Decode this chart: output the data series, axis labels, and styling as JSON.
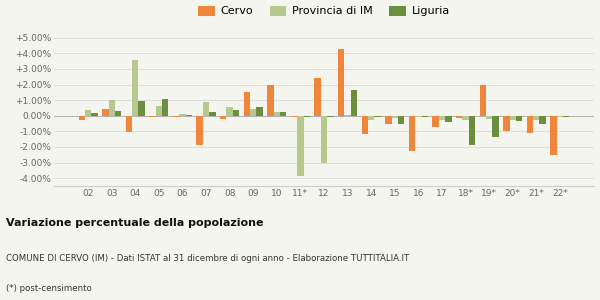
{
  "categories": [
    "02",
    "03",
    "04",
    "05",
    "06",
    "07",
    "08",
    "09",
    "10",
    "11*",
    "12",
    "13",
    "14",
    "15",
    "16",
    "17",
    "18*",
    "19*",
    "20*",
    "21*",
    "22*"
  ],
  "cervo": [
    -0.3,
    0.45,
    -1.05,
    -0.05,
    -0.1,
    -1.85,
    -0.2,
    1.5,
    2.0,
    -0.1,
    2.4,
    4.3,
    -1.15,
    -0.55,
    -2.25,
    -0.7,
    -0.15,
    1.95,
    -1.0,
    -1.1,
    -2.5
  ],
  "provincia": [
    0.35,
    1.0,
    3.55,
    0.65,
    0.1,
    0.9,
    0.55,
    0.45,
    0.25,
    -3.85,
    -3.05,
    0.05,
    -0.3,
    -0.15,
    -0.1,
    -0.3,
    -0.3,
    -0.2,
    -0.25,
    -0.25,
    -0.05
  ],
  "liguria": [
    0.15,
    0.3,
    0.95,
    1.1,
    0.05,
    0.25,
    0.35,
    0.55,
    0.25,
    -0.1,
    -0.1,
    1.65,
    -0.1,
    -0.55,
    -0.1,
    -0.4,
    -1.9,
    -1.35,
    -0.35,
    -0.55,
    -0.05
  ],
  "cervo_color": "#f0853c",
  "provincia_color": "#b5c98e",
  "liguria_color": "#6b8f3e",
  "title": "Variazione percentuale della popolazione",
  "subtitle": "COMUNE DI CERVO (IM) - Dati ISTAT al 31 dicembre di ogni anno - Elaborazione TUTTITALIA.IT",
  "footnote": "(*) post-censimento",
  "ylim": [
    -4.5,
    5.5
  ],
  "yticks": [
    -4.0,
    -3.0,
    -2.0,
    -1.0,
    0.0,
    1.0,
    2.0,
    3.0,
    4.0,
    5.0
  ],
  "bg_color": "#f5f5f0",
  "grid_color": "#dddddd"
}
